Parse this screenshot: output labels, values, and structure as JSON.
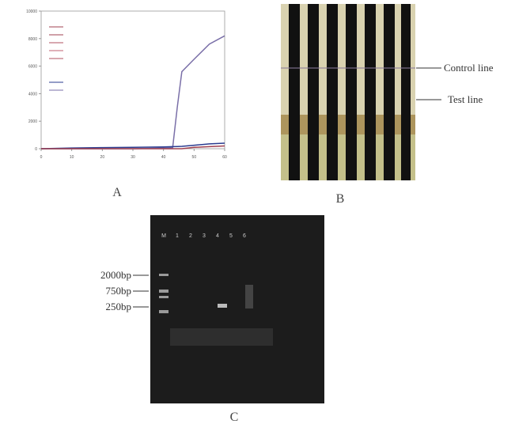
{
  "panels": [
    {
      "label": "A",
      "chart_data": {
        "type": "line",
        "x": [
          0,
          10,
          20,
          30,
          40,
          43,
          44.5,
          46,
          50,
          55,
          60
        ],
        "xlim": [
          0,
          60
        ],
        "xticks": [
          0,
          10,
          20,
          30,
          40,
          50,
          60
        ],
        "ylim": [
          0,
          10000
        ],
        "yticks": [
          0,
          2000,
          4000,
          6000,
          8000,
          10000
        ],
        "series": [
          {
            "color": "#7a6fa8",
            "values": [
              0,
              0,
              0,
              0,
              50,
              80,
              3000,
              5600,
              6500,
              7600,
              8200
            ]
          },
          {
            "color": "#2a3b8f",
            "values": [
              0,
              50,
              80,
              100,
              130,
              150,
              160,
              170,
              250,
              350,
              400
            ]
          },
          {
            "color": "#a04050",
            "values": [
              0,
              0,
              0,
              0,
              0,
              0,
              0,
              0,
              100,
              150,
              200
            ]
          }
        ]
      }
    },
    {
      "label": "B",
      "annotations": [
        "Control line",
        "Test line"
      ]
    },
    {
      "label": "C",
      "lanes": [
        "M",
        "1",
        "2",
        "3",
        "4",
        "5",
        "6"
      ],
      "markers": [
        "2000bp",
        "750bp",
        "250bp"
      ]
    }
  ]
}
